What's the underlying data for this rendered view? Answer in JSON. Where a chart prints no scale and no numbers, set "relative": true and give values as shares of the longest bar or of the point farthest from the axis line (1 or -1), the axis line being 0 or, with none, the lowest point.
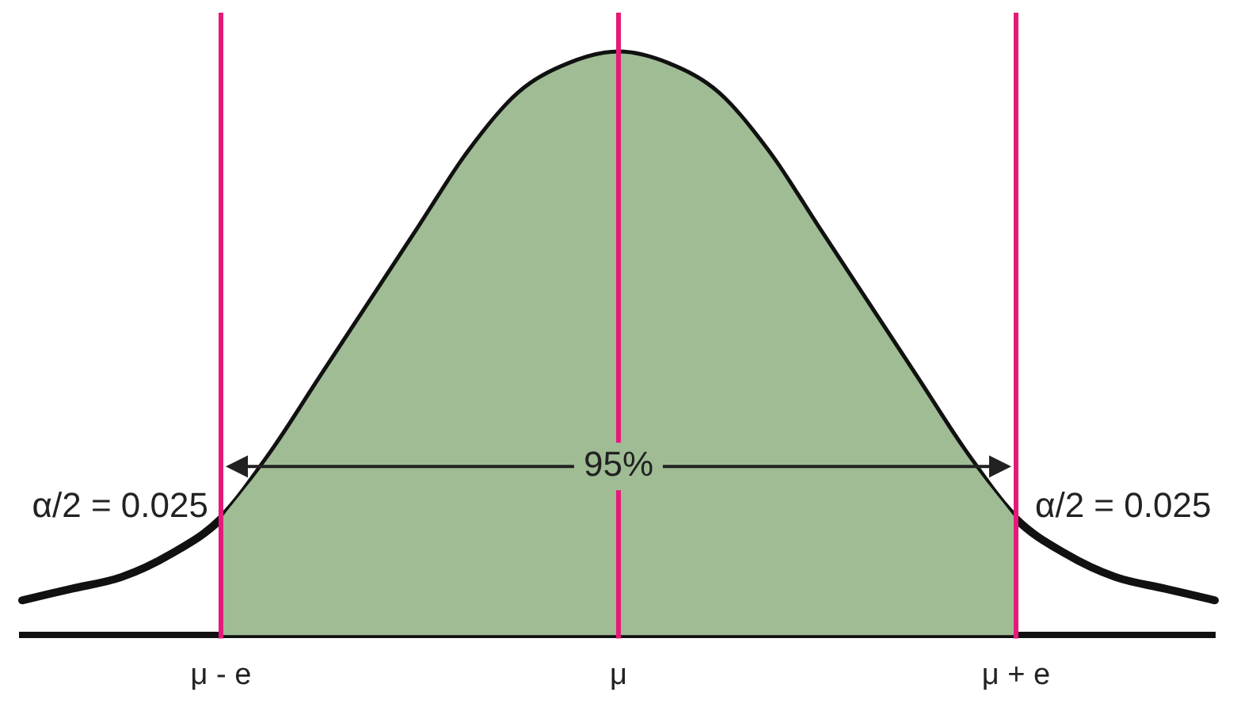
{
  "chart_data": {
    "type": "area",
    "relative": true,
    "categories": [
      null,
      null,
      null,
      null,
      "μ - e",
      null,
      null,
      null,
      null,
      null,
      null,
      null,
      "μ",
      null,
      null,
      null,
      null,
      null,
      null,
      null,
      "μ + e",
      null,
      null,
      null,
      null
    ],
    "series": [
      {
        "type": "area",
        "color": "#9fbc94",
        "values": [
          null,
          null,
          null,
          null,
          0.2,
          0.31,
          0.44,
          0.57,
          0.7,
          0.83,
          0.93,
          0.98,
          1.0,
          0.98,
          0.93,
          0.83,
          0.7,
          0.57,
          0.44,
          0.31,
          0.2,
          null,
          null,
          null,
          null
        ]
      },
      {
        "type": "line",
        "color": "#111111",
        "values": [
          0.06,
          0.08,
          0.1,
          0.14,
          0.2,
          0.31,
          0.44,
          0.57,
          0.7,
          0.83,
          0.93,
          0.98,
          1.0,
          0.98,
          0.93,
          0.83,
          0.7,
          0.57,
          0.44,
          0.31,
          0.2,
          0.14,
          0.1,
          0.08,
          0.06
        ]
      }
    ],
    "ref_lines": [
      {
        "axis": "x",
        "value": "μ - e",
        "color": "#e6197a"
      },
      {
        "axis": "x",
        "value": "μ",
        "color": "#e6197a"
      },
      {
        "axis": "x",
        "value": "μ + e",
        "color": "#e6197a"
      }
    ],
    "annotations": [
      "α/2 = 0.025",
      {
        "text": "95%",
        "x": "μ",
        "y": 0.29
      },
      "α/2 = 0.025"
    ],
    "legend": false,
    "grid": false,
    "marker": "none"
  }
}
